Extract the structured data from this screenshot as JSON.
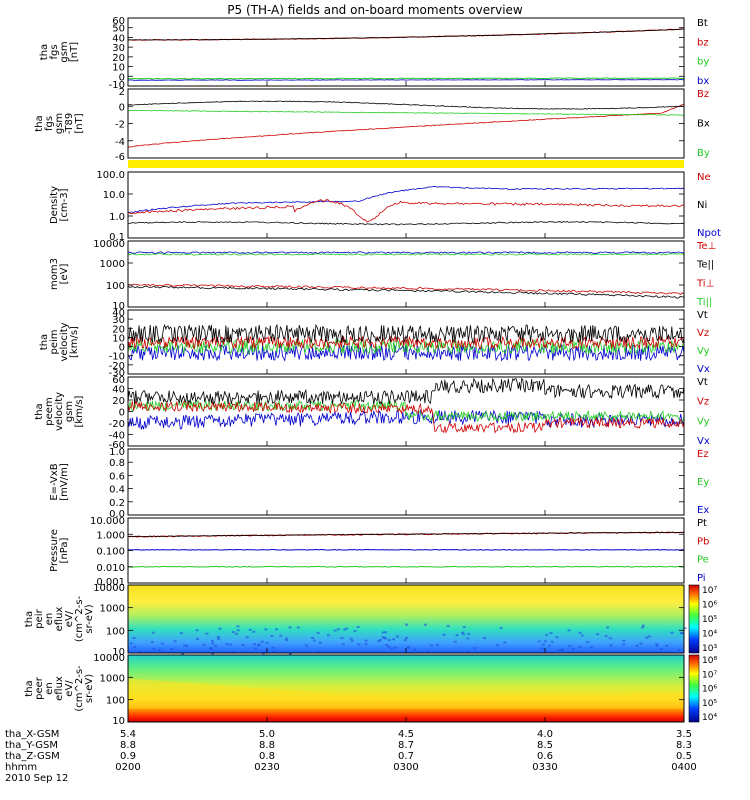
{
  "title": "P5 (TH-A) fields and on-board moments overview",
  "colors": {
    "black": "#000000",
    "red": "#cc0000",
    "green": "#22cc22",
    "blue": "#0000cc",
    "yellow": "#ffee00"
  },
  "chart_data": [
    {
      "type": "line",
      "ylabel": [
        "tha",
        "fgs",
        "gsm",
        "[nT]"
      ],
      "yticks": [
        "60",
        "50",
        "40",
        "30",
        "20",
        "10",
        "0",
        "-10"
      ],
      "legend": [
        {
          "label": "Bt",
          "color": "black"
        },
        {
          "label": "bz",
          "color": "red"
        },
        {
          "label": "by",
          "color": "green"
        },
        {
          "label": "bx",
          "color": "blue"
        }
      ]
    },
    {
      "type": "line",
      "ylabel": [
        "tha",
        "fgs",
        "gsm",
        "-T89",
        "[nT]"
      ],
      "yticks": [
        "2",
        "0",
        "-2",
        "-4",
        "-6"
      ],
      "legend": [
        {
          "label": "Bz",
          "color": "red"
        },
        {
          "label": "Bx",
          "color": "black"
        },
        {
          "label": "By",
          "color": "green"
        }
      ]
    },
    {
      "type": "line",
      "ylabel": [
        "Density",
        "[cm-3]"
      ],
      "yticks": [
        "100.0",
        "10.0",
        "1.0",
        "0.1"
      ],
      "legend": [
        {
          "label": "Ne",
          "color": "red"
        },
        {
          "label": "Ni",
          "color": "black"
        },
        {
          "label": "Npot",
          "color": "blue"
        }
      ]
    },
    {
      "type": "line",
      "ylabel": [
        "mom3",
        "[eV]"
      ],
      "yticks": [
        "10000",
        "1000",
        "100",
        "10"
      ],
      "legend": [
        {
          "label": "Te⊥",
          "color": "red"
        },
        {
          "label": "Te||",
          "color": "black"
        },
        {
          "label": "Ti⊥",
          "color": "red"
        },
        {
          "label": "Ti||",
          "color": "green"
        }
      ]
    },
    {
      "type": "line",
      "ylabel": [
        "tha",
        "peim",
        "velocity",
        "[km/s]"
      ],
      "yticks": [
        "40",
        "30",
        "20",
        "10",
        "0",
        "-10",
        "-20",
        "-30"
      ],
      "legend": [
        {
          "label": "Vt",
          "color": "black"
        },
        {
          "label": "Vz",
          "color": "red"
        },
        {
          "label": "Vy",
          "color": "green"
        },
        {
          "label": "Vx",
          "color": "blue"
        }
      ]
    },
    {
      "type": "line",
      "ylabel": [
        "tha",
        "peem",
        "velocity",
        "gsm",
        "[km/s]"
      ],
      "yticks": [
        "60",
        "40",
        "20",
        "0",
        "-20",
        "-40",
        "-60"
      ],
      "legend": [
        {
          "label": "Vt",
          "color": "black"
        },
        {
          "label": "Vz",
          "color": "red"
        },
        {
          "label": "Vy",
          "color": "green"
        },
        {
          "label": "Vx",
          "color": "blue"
        }
      ]
    },
    {
      "type": "line",
      "ylabel": [
        "E=-VxB",
        "[mV/m]"
      ],
      "yticks": [
        "1.0",
        "0.8",
        "0.6",
        "0.4",
        "0.2",
        "0.0"
      ],
      "legend": [
        {
          "label": "Ez",
          "color": "red"
        },
        {
          "label": "Ey",
          "color": "green"
        },
        {
          "label": "Ex",
          "color": "blue"
        }
      ]
    },
    {
      "type": "line",
      "ylabel": [
        "Pressure",
        "[nPa]"
      ],
      "yticks": [
        "10.000",
        "1.000",
        "0.100",
        "0.010",
        "0.001"
      ],
      "legend": [
        {
          "label": "Pt",
          "color": "black"
        },
        {
          "label": "Pb",
          "color": "red"
        },
        {
          "label": "Pe",
          "color": "green"
        },
        {
          "label": "Pi",
          "color": "blue"
        }
      ]
    },
    {
      "type": "heatmap",
      "ylabel": [
        "tha",
        "peir",
        "en",
        "eflux",
        "eV/",
        "(cm^2-s-",
        "sr-eV)"
      ],
      "yticks": [
        "10000",
        "1000",
        "100",
        "10"
      ],
      "colorbar": [
        "10⁷",
        "10⁶",
        "10⁵",
        "10⁴",
        "10³"
      ]
    },
    {
      "type": "heatmap",
      "ylabel": [
        "tha",
        "peer",
        "en",
        "eflux",
        "eV/",
        "(cm^2-s-",
        "sr-eV)"
      ],
      "yticks": [
        "10000",
        "1000",
        "100",
        "10"
      ],
      "colorbar": [
        "10⁸",
        "10⁷",
        "10⁶",
        "10⁵",
        "10⁴"
      ]
    }
  ],
  "xaxis": {
    "rows": [
      {
        "label": "tha_X-GSM",
        "values": [
          "5.4",
          "5.0",
          "4.5",
          "4.0",
          "3.5"
        ]
      },
      {
        "label": "tha_Y-GSM",
        "values": [
          "8.8",
          "8.8",
          "8.7",
          "8.5",
          "8.3"
        ]
      },
      {
        "label": "tha_Z-GSM",
        "values": [
          "0.9",
          "0.8",
          "0.7",
          "0.6",
          "0.5"
        ]
      },
      {
        "label": "hhmm",
        "values": [
          "0200",
          "0230",
          "0300",
          "0330",
          "0400"
        ]
      }
    ],
    "date": "2010 Sep 12"
  }
}
